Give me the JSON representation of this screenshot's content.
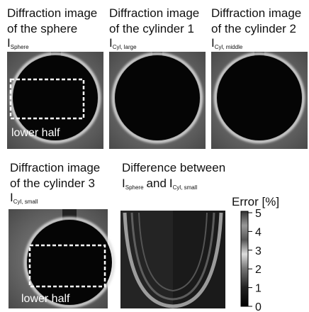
{
  "panels": [
    {
      "title": [
        "Diffraction image",
        "of the sphere"
      ],
      "symbol": "I",
      "subscript": "Sphere",
      "annotation": "lower half"
    },
    {
      "title": [
        "Diffraction image",
        "of the cylinder 1"
      ],
      "symbol": "I",
      "subscript": "Cyl, large"
    },
    {
      "title": [
        "Diffraction image",
        "of the cylinder 2"
      ],
      "symbol": "I",
      "subscript": "Cyl, middle"
    },
    {
      "title": [
        "Diffraction image",
        "of the cylinder 3"
      ],
      "symbol": "I",
      "subscript": "Cyl, small",
      "annotation": "lower half"
    }
  ],
  "difference": {
    "title": "Difference between",
    "symbol_a": "I",
    "subscript_a": "Sphere",
    "connector": "and",
    "symbol_b": "I",
    "subscript_b": "Cyl, small"
  },
  "colorbar": {
    "label": "Error [%]",
    "ticks": [
      0,
      1,
      2,
      3,
      4,
      5
    ]
  }
}
